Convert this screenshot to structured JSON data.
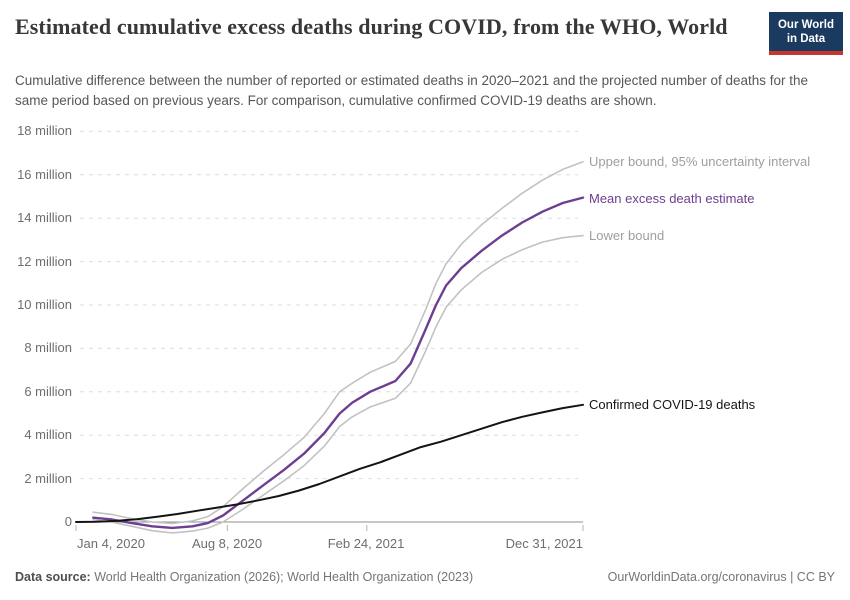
{
  "header": {
    "title": "Estimated cumulative excess deaths during COVID, from the WHO, World",
    "subtitle": "Cumulative difference between the number of reported or estimated deaths in 2020–2021 and the projected number of deaths for the same period based on previous years. For comparison, cumulative confirmed COVID-19 deaths are shown.",
    "logo": {
      "line1": "Our World",
      "line2": "in Data",
      "bg_color": "#1b3a5f",
      "bar_color": "#c5382f"
    }
  },
  "footer": {
    "datasource_label": "Data source:",
    "datasource_value": " World Health Organization (2026); World Health Organization (2023)",
    "attribution": "OurWorldinData.org/coronavirus | CC BY"
  },
  "chart_data": {
    "type": "line",
    "title": "Estimated cumulative excess deaths during COVID, from the WHO, World",
    "unit": "deaths (millions)",
    "grid": true,
    "legend_position": "right-end-of-line",
    "x_axis": {
      "range_labels": [
        "Jan 4, 2020",
        "Dec 31, 2021"
      ],
      "ticks": [
        {
          "label": "Jan 4, 2020",
          "t": 0
        },
        {
          "label": "Aug 8, 2020",
          "t": 0.2985
        },
        {
          "label": "Feb 24, 2021",
          "t": 0.5736
        },
        {
          "label": "Dec 31, 2021",
          "t": 1
        }
      ]
    },
    "y_axis": {
      "range": [
        -0.5,
        18
      ],
      "ticks": [
        {
          "label": "0",
          "value": 0
        },
        {
          "label": "2 million",
          "value": 2
        },
        {
          "label": "4 million",
          "value": 4
        },
        {
          "label": "6 million",
          "value": 6
        },
        {
          "label": "8 million",
          "value": 8
        },
        {
          "label": "10 million",
          "value": 10
        },
        {
          "label": "12 million",
          "value": 12
        },
        {
          "label": "14 million",
          "value": 14
        },
        {
          "label": "16 million",
          "value": 16
        },
        {
          "label": "18 million",
          "value": 18
        }
      ]
    },
    "series": [
      {
        "name": "Upper bound, 95% uncertainty interval",
        "color": "#c2c2c2",
        "label_color": "#9e9e9e",
        "width": 1.6,
        "end_value_millions": 16.6,
        "points": [
          [
            0.034,
            0.45
          ],
          [
            0.07,
            0.35
          ],
          [
            0.11,
            0.15
          ],
          [
            0.15,
            0.0
          ],
          [
            0.19,
            -0.07
          ],
          [
            0.23,
            0.05
          ],
          [
            0.26,
            0.25
          ],
          [
            0.29,
            0.7
          ],
          [
            0.33,
            1.55
          ],
          [
            0.37,
            2.35
          ],
          [
            0.41,
            3.1
          ],
          [
            0.45,
            3.9
          ],
          [
            0.49,
            5.0
          ],
          [
            0.52,
            6.0
          ],
          [
            0.545,
            6.4
          ],
          [
            0.58,
            6.9
          ],
          [
            0.63,
            7.4
          ],
          [
            0.66,
            8.2
          ],
          [
            0.69,
            9.8
          ],
          [
            0.71,
            11.0
          ],
          [
            0.73,
            11.9
          ],
          [
            0.76,
            12.8
          ],
          [
            0.8,
            13.7
          ],
          [
            0.84,
            14.45
          ],
          [
            0.88,
            15.15
          ],
          [
            0.92,
            15.75
          ],
          [
            0.96,
            16.25
          ],
          [
            1.0,
            16.6
          ]
        ]
      },
      {
        "name": "Mean excess death estimate",
        "color": "#6d3e91",
        "label_color": "#6d3e91",
        "width": 2.4,
        "end_value_millions": 14.95,
        "points": [
          [
            0.034,
            0.2
          ],
          [
            0.07,
            0.12
          ],
          [
            0.11,
            -0.05
          ],
          [
            0.15,
            -0.2
          ],
          [
            0.19,
            -0.27
          ],
          [
            0.23,
            -0.2
          ],
          [
            0.26,
            -0.05
          ],
          [
            0.29,
            0.3
          ],
          [
            0.33,
            1.0
          ],
          [
            0.37,
            1.7
          ],
          [
            0.41,
            2.4
          ],
          [
            0.45,
            3.15
          ],
          [
            0.49,
            4.1
          ],
          [
            0.52,
            5.0
          ],
          [
            0.545,
            5.5
          ],
          [
            0.58,
            6.0
          ],
          [
            0.63,
            6.5
          ],
          [
            0.66,
            7.3
          ],
          [
            0.69,
            8.9
          ],
          [
            0.71,
            10.0
          ],
          [
            0.73,
            10.9
          ],
          [
            0.76,
            11.7
          ],
          [
            0.8,
            12.5
          ],
          [
            0.84,
            13.2
          ],
          [
            0.88,
            13.8
          ],
          [
            0.92,
            14.3
          ],
          [
            0.96,
            14.7
          ],
          [
            1.0,
            14.95
          ]
        ]
      },
      {
        "name": "Lower bound",
        "color": "#c2c2c2",
        "label_color": "#9e9e9e",
        "width": 1.6,
        "end_value_millions": 13.2,
        "points": [
          [
            0.034,
            0.1
          ],
          [
            0.07,
            0.0
          ],
          [
            0.11,
            -0.2
          ],
          [
            0.15,
            -0.4
          ],
          [
            0.19,
            -0.5
          ],
          [
            0.23,
            -0.42
          ],
          [
            0.26,
            -0.28
          ],
          [
            0.29,
            0.0
          ],
          [
            0.33,
            0.6
          ],
          [
            0.37,
            1.25
          ],
          [
            0.41,
            1.9
          ],
          [
            0.45,
            2.6
          ],
          [
            0.49,
            3.5
          ],
          [
            0.52,
            4.4
          ],
          [
            0.545,
            4.85
          ],
          [
            0.58,
            5.3
          ],
          [
            0.63,
            5.7
          ],
          [
            0.66,
            6.4
          ],
          [
            0.69,
            7.9
          ],
          [
            0.71,
            9.0
          ],
          [
            0.73,
            9.9
          ],
          [
            0.76,
            10.7
          ],
          [
            0.8,
            11.5
          ],
          [
            0.84,
            12.1
          ],
          [
            0.88,
            12.55
          ],
          [
            0.92,
            12.9
          ],
          [
            0.96,
            13.1
          ],
          [
            1.0,
            13.2
          ]
        ]
      },
      {
        "name": "Confirmed COVID-19 deaths",
        "color": "#141414",
        "label_color": "#141414",
        "width": 2,
        "end_value_millions": 5.4,
        "points": [
          [
            0,
            0.0
          ],
          [
            0.04,
            0.01
          ],
          [
            0.08,
            0.05
          ],
          [
            0.12,
            0.13
          ],
          [
            0.16,
            0.24
          ],
          [
            0.2,
            0.37
          ],
          [
            0.24,
            0.52
          ],
          [
            0.28,
            0.67
          ],
          [
            0.32,
            0.82
          ],
          [
            0.36,
            1.0
          ],
          [
            0.4,
            1.2
          ],
          [
            0.44,
            1.45
          ],
          [
            0.48,
            1.75
          ],
          [
            0.52,
            2.1
          ],
          [
            0.56,
            2.45
          ],
          [
            0.6,
            2.75
          ],
          [
            0.64,
            3.1
          ],
          [
            0.68,
            3.45
          ],
          [
            0.72,
            3.7
          ],
          [
            0.76,
            4.0
          ],
          [
            0.8,
            4.3
          ],
          [
            0.84,
            4.6
          ],
          [
            0.88,
            4.85
          ],
          [
            0.92,
            5.05
          ],
          [
            0.96,
            5.25
          ],
          [
            1.0,
            5.4
          ]
        ]
      }
    ],
    "style": {
      "gridline_color": "#dedede",
      "zero_line_color": "#8f8f8f",
      "tick_mark_color": "#b3b3b3"
    }
  }
}
